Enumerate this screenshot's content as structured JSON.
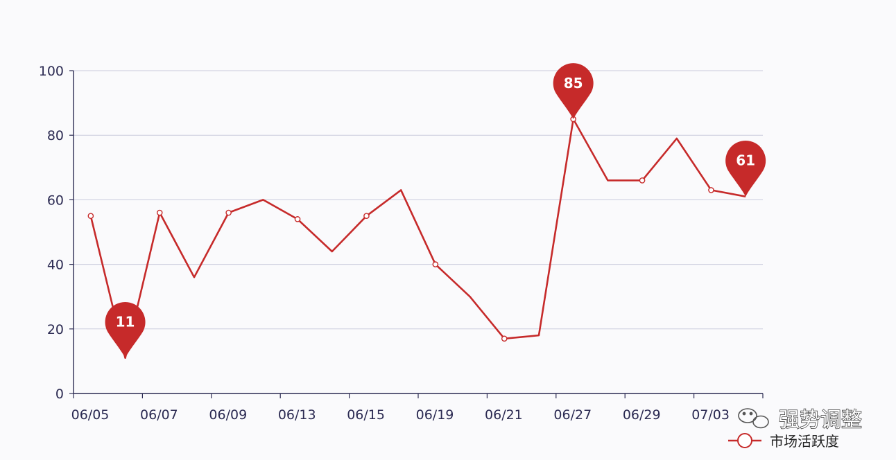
{
  "chart_data": {
    "type": "line",
    "title": "",
    "xlabel": "",
    "ylabel": "",
    "ylim": [
      0,
      100
    ],
    "yticks": [
      0,
      20,
      40,
      60,
      80,
      100
    ],
    "grid": true,
    "x_tick_labels": [
      "06/05",
      "06/07",
      "06/09",
      "06/13",
      "06/15",
      "06/19",
      "06/21",
      "06/27",
      "06/29",
      "07/03"
    ],
    "x": [
      "06/05",
      "",
      "06/07",
      "",
      "06/09",
      "",
      "06/13",
      "",
      "06/15",
      "",
      "06/19",
      "",
      "06/21",
      "",
      "06/27",
      "",
      "06/29",
      "",
      "07/03",
      ""
    ],
    "series": [
      {
        "name": "市场活跃度",
        "color": "#c62a2a",
        "values": [
          55,
          11,
          56,
          36,
          56,
          60,
          54,
          44,
          55,
          63,
          40,
          30,
          17,
          18,
          85,
          66,
          66,
          79,
          63,
          61
        ]
      }
    ],
    "markers_on": [
      0,
      2,
      4,
      6,
      8,
      10,
      12,
      14,
      16,
      18
    ],
    "annotations": [
      {
        "index": 1,
        "label": "11"
      },
      {
        "index": 14,
        "label": "85"
      },
      {
        "index": 19,
        "label": "61"
      }
    ],
    "legend_position": "bottom-right"
  },
  "watermark": {
    "text": "强势调整"
  },
  "colors": {
    "line": "#c62a2a",
    "pin": "#c62a2a",
    "grid": "#c9cbdc",
    "axis": "#2b2a52"
  }
}
